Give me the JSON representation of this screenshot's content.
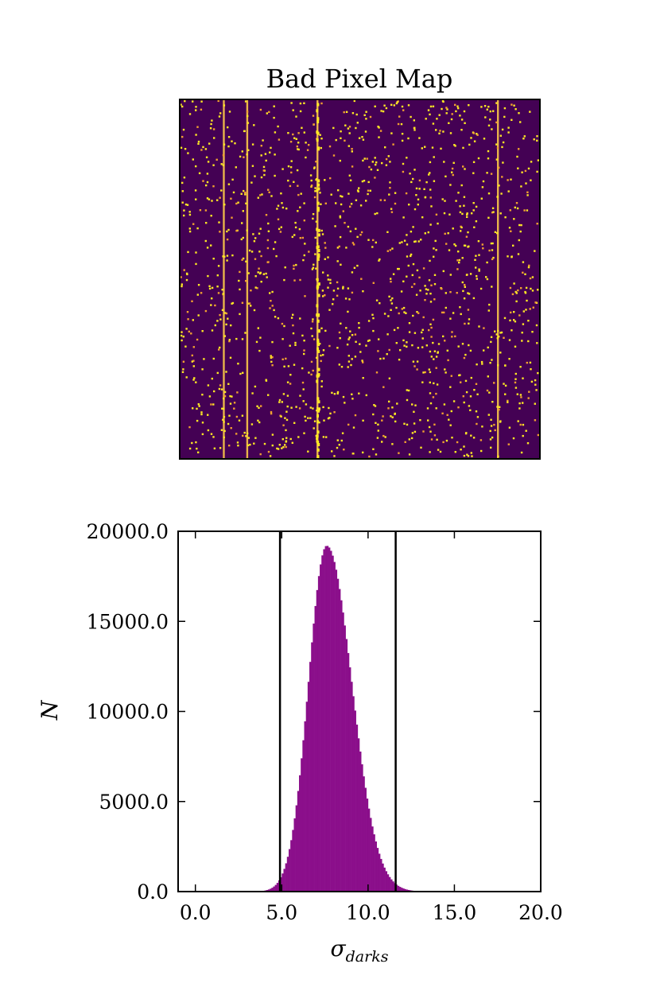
{
  "chart_data": [
    {
      "type": "heatmap",
      "title": "Bad Pixel Map",
      "axes_visible": false,
      "colors": {
        "background": "#440154",
        "bad_pixel": "#fde725",
        "column": "#e8b44a"
      },
      "bad_columns_fraction": [
        0.122,
        0.187,
        0.382,
        0.883
      ]
    },
    {
      "type": "bar",
      "title": "",
      "xlabel": "σ_darks",
      "ylabel": "N",
      "xlim": [
        -1.0,
        20.0
      ],
      "ylim": [
        0.0,
        20000.0
      ],
      "xticks": [
        "0.0",
        "5.0",
        "10.0",
        "15.0",
        "20.0"
      ],
      "yticks": [
        "0.0",
        "5000.0",
        "10000.0",
        "15000.0",
        "20000.0"
      ],
      "bar_color": "#8b0f8b",
      "bin_width": 0.1,
      "distribution": {
        "peak_x": 7.6,
        "peak_count": 19200,
        "sigma_left": 1.05,
        "sigma_right": 1.45
      },
      "threshold_lines": [
        4.9,
        11.6
      ]
    }
  ]
}
